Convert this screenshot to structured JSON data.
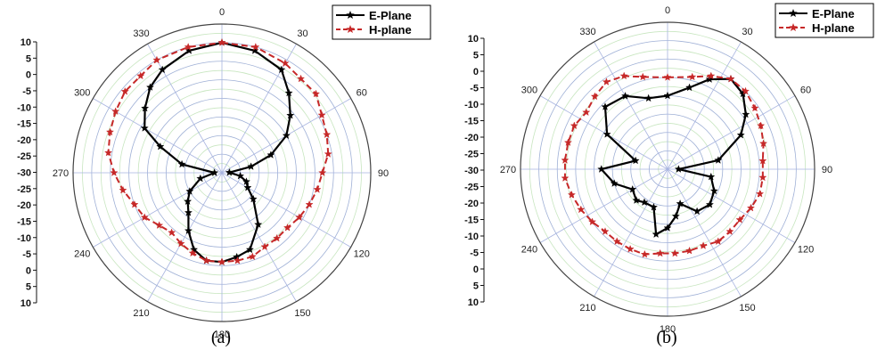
{
  "chart_data": [
    {
      "type": "polar-line",
      "caption": "(a)",
      "angle_labels": [
        "0",
        "30",
        "60",
        "90",
        "120",
        "150",
        "180",
        "210",
        "240",
        "270",
        "300",
        "330"
      ],
      "radial_tick_labels": [
        "10",
        "5",
        "0",
        "-5",
        "-10",
        "-15",
        "-20",
        "-25",
        "-30",
        "-25",
        "-20",
        "-15",
        "-10",
        "-5",
        "0",
        "5",
        "10"
      ],
      "rlim": [
        -30,
        10
      ],
      "grid": true,
      "legend_position": "top-right",
      "series": [
        {
          "name": "E-Plane",
          "color": "#000000",
          "marker": "star",
          "points": [
            {
              "theta": 0,
              "r": 5
            },
            {
              "theta": 15,
              "r": 4
            },
            {
              "theta": 30,
              "r": 2
            },
            {
              "theta": 40,
              "r": -2
            },
            {
              "theta": 50,
              "r": -6
            },
            {
              "theta": 60,
              "r": -10
            },
            {
              "theta": 70,
              "r": -16
            },
            {
              "theta": 78,
              "r": -22
            },
            {
              "theta": 88,
              "r": -28
            },
            {
              "theta": 100,
              "r": -25
            },
            {
              "theta": 110,
              "r": -23
            },
            {
              "theta": 120,
              "r": -22
            },
            {
              "theta": 130,
              "r": -19
            },
            {
              "theta": 145,
              "r": -13
            },
            {
              "theta": 160,
              "r": -8
            },
            {
              "theta": 170,
              "r": -7
            },
            {
              "theta": 180,
              "r": -6
            },
            {
              "theta": 190,
              "r": -6
            },
            {
              "theta": 200,
              "r": -8
            },
            {
              "theta": 210,
              "r": -12
            },
            {
              "theta": 220,
              "r": -16
            },
            {
              "theta": 230,
              "r": -18
            },
            {
              "theta": 240,
              "r": -20
            },
            {
              "theta": 255,
              "r": -24
            },
            {
              "theta": 270,
              "r": -28
            },
            {
              "theta": 282,
              "r": -19
            },
            {
              "theta": 293,
              "r": -12
            },
            {
              "theta": 300,
              "r": -6
            },
            {
              "theta": 310,
              "r": -3
            },
            {
              "theta": 320,
              "r": 0
            },
            {
              "theta": 330,
              "r": 2
            },
            {
              "theta": 345,
              "r": 4
            }
          ]
        },
        {
          "name": "H-plane",
          "color": "#c62828",
          "marker": "star",
          "points": [
            {
              "theta": 0,
              "r": 5
            },
            {
              "theta": 15,
              "r": 5
            },
            {
              "theta": 30,
              "r": 4
            },
            {
              "theta": 40,
              "r": 3
            },
            {
              "theta": 50,
              "r": 3
            },
            {
              "theta": 60,
              "r": 1
            },
            {
              "theta": 70,
              "r": 0
            },
            {
              "theta": 80,
              "r": -1
            },
            {
              "theta": 90,
              "r": -3
            },
            {
              "theta": 100,
              "r": -4
            },
            {
              "theta": 110,
              "r": -5
            },
            {
              "theta": 120,
              "r": -6
            },
            {
              "theta": 130,
              "r": -7
            },
            {
              "theta": 140,
              "r": -7
            },
            {
              "theta": 150,
              "r": -7
            },
            {
              "theta": 160,
              "r": -6
            },
            {
              "theta": 170,
              "r": -6
            },
            {
              "theta": 180,
              "r": -6
            },
            {
              "theta": 190,
              "r": -6
            },
            {
              "theta": 200,
              "r": -7
            },
            {
              "theta": 210,
              "r": -8
            },
            {
              "theta": 220,
              "r": -9
            },
            {
              "theta": 230,
              "r": -8
            },
            {
              "theta": 240,
              "r": -6
            },
            {
              "theta": 250,
              "r": -5
            },
            {
              "theta": 260,
              "r": -3
            },
            {
              "theta": 270,
              "r": -1
            },
            {
              "theta": 280,
              "r": 1
            },
            {
              "theta": 290,
              "r": 2
            },
            {
              "theta": 300,
              "r": 3
            },
            {
              "theta": 310,
              "r": 4
            },
            {
              "theta": 320,
              "r": 4
            },
            {
              "theta": 330,
              "r": 5
            },
            {
              "theta": 345,
              "r": 5
            }
          ]
        }
      ]
    },
    {
      "type": "polar-line",
      "caption": "(b)",
      "angle_labels": [
        "0",
        "30",
        "60",
        "90",
        "120",
        "150",
        "180",
        "210",
        "240",
        "270",
        "300",
        "330"
      ],
      "radial_tick_labels": [
        "10",
        "5",
        "0",
        "-5",
        "-10",
        "-15",
        "-20",
        "-25",
        "-30",
        "-25",
        "-20",
        "-15",
        "-10",
        "-5",
        "0",
        "5",
        "10"
      ],
      "rlim": [
        -30,
        10
      ],
      "grid": true,
      "legend_position": "top-right",
      "series": [
        {
          "name": "E-Plane",
          "color": "#000000",
          "marker": "star",
          "points": [
            {
              "theta": 0,
              "r": -10
            },
            {
              "theta": 15,
              "r": -7
            },
            {
              "theta": 25,
              "r": -3
            },
            {
              "theta": 35,
              "r": 0
            },
            {
              "theta": 45,
              "r": -1
            },
            {
              "theta": 55,
              "r": -4
            },
            {
              "theta": 65,
              "r": -8
            },
            {
              "theta": 80,
              "r": -16
            },
            {
              "theta": 90,
              "r": -27
            },
            {
              "theta": 100,
              "r": -18
            },
            {
              "theta": 115,
              "r": -16
            },
            {
              "theta": 130,
              "r": -15
            },
            {
              "theta": 145,
              "r": -16
            },
            {
              "theta": 160,
              "r": -20
            },
            {
              "theta": 170,
              "r": -17
            },
            {
              "theta": 180,
              "r": -14
            },
            {
              "theta": 190,
              "r": -12
            },
            {
              "theta": 200,
              "r": -19
            },
            {
              "theta": 215,
              "r": -19
            },
            {
              "theta": 225,
              "r": -18
            },
            {
              "theta": 240,
              "r": -19
            },
            {
              "theta": 255,
              "r": -15
            },
            {
              "theta": 270,
              "r": -12
            },
            {
              "theta": 285,
              "r": -21
            },
            {
              "theta": 300,
              "r": -11
            },
            {
              "theta": 315,
              "r": -6
            },
            {
              "theta": 330,
              "r": -7
            },
            {
              "theta": 345,
              "r": -10
            }
          ]
        },
        {
          "name": "H-plane",
          "color": "#c62828",
          "marker": "star",
          "points": [
            {
              "theta": 0,
              "r": -5
            },
            {
              "theta": 15,
              "r": -4
            },
            {
              "theta": 25,
              "r": -2
            },
            {
              "theta": 35,
              "r": 0
            },
            {
              "theta": 45,
              "r": 0
            },
            {
              "theta": 55,
              "r": -1
            },
            {
              "theta": 65,
              "r": -2
            },
            {
              "theta": 75,
              "r": -3
            },
            {
              "theta": 85,
              "r": -4
            },
            {
              "theta": 95,
              "r": -4
            },
            {
              "theta": 105,
              "r": -4
            },
            {
              "theta": 115,
              "r": -5
            },
            {
              "theta": 125,
              "r": -6
            },
            {
              "theta": 135,
              "r": -6
            },
            {
              "theta": 145,
              "r": -6
            },
            {
              "theta": 155,
              "r": -7
            },
            {
              "theta": 165,
              "r": -7
            },
            {
              "theta": 175,
              "r": -7
            },
            {
              "theta": 185,
              "r": -7
            },
            {
              "theta": 195,
              "r": -6
            },
            {
              "theta": 205,
              "r": -6
            },
            {
              "theta": 215,
              "r": -6
            },
            {
              "theta": 225,
              "r": -6
            },
            {
              "theta": 235,
              "r": -5
            },
            {
              "theta": 245,
              "r": -4
            },
            {
              "theta": 255,
              "r": -3
            },
            {
              "theta": 265,
              "r": -2
            },
            {
              "theta": 275,
              "r": -2
            },
            {
              "theta": 285,
              "r": -2
            },
            {
              "theta": 295,
              "r": -2
            },
            {
              "theta": 305,
              "r": -3
            },
            {
              "theta": 315,
              "r": -2
            },
            {
              "theta": 325,
              "r": -1
            },
            {
              "theta": 335,
              "r": -2
            },
            {
              "theta": 345,
              "r": -4
            }
          ]
        }
      ]
    }
  ]
}
